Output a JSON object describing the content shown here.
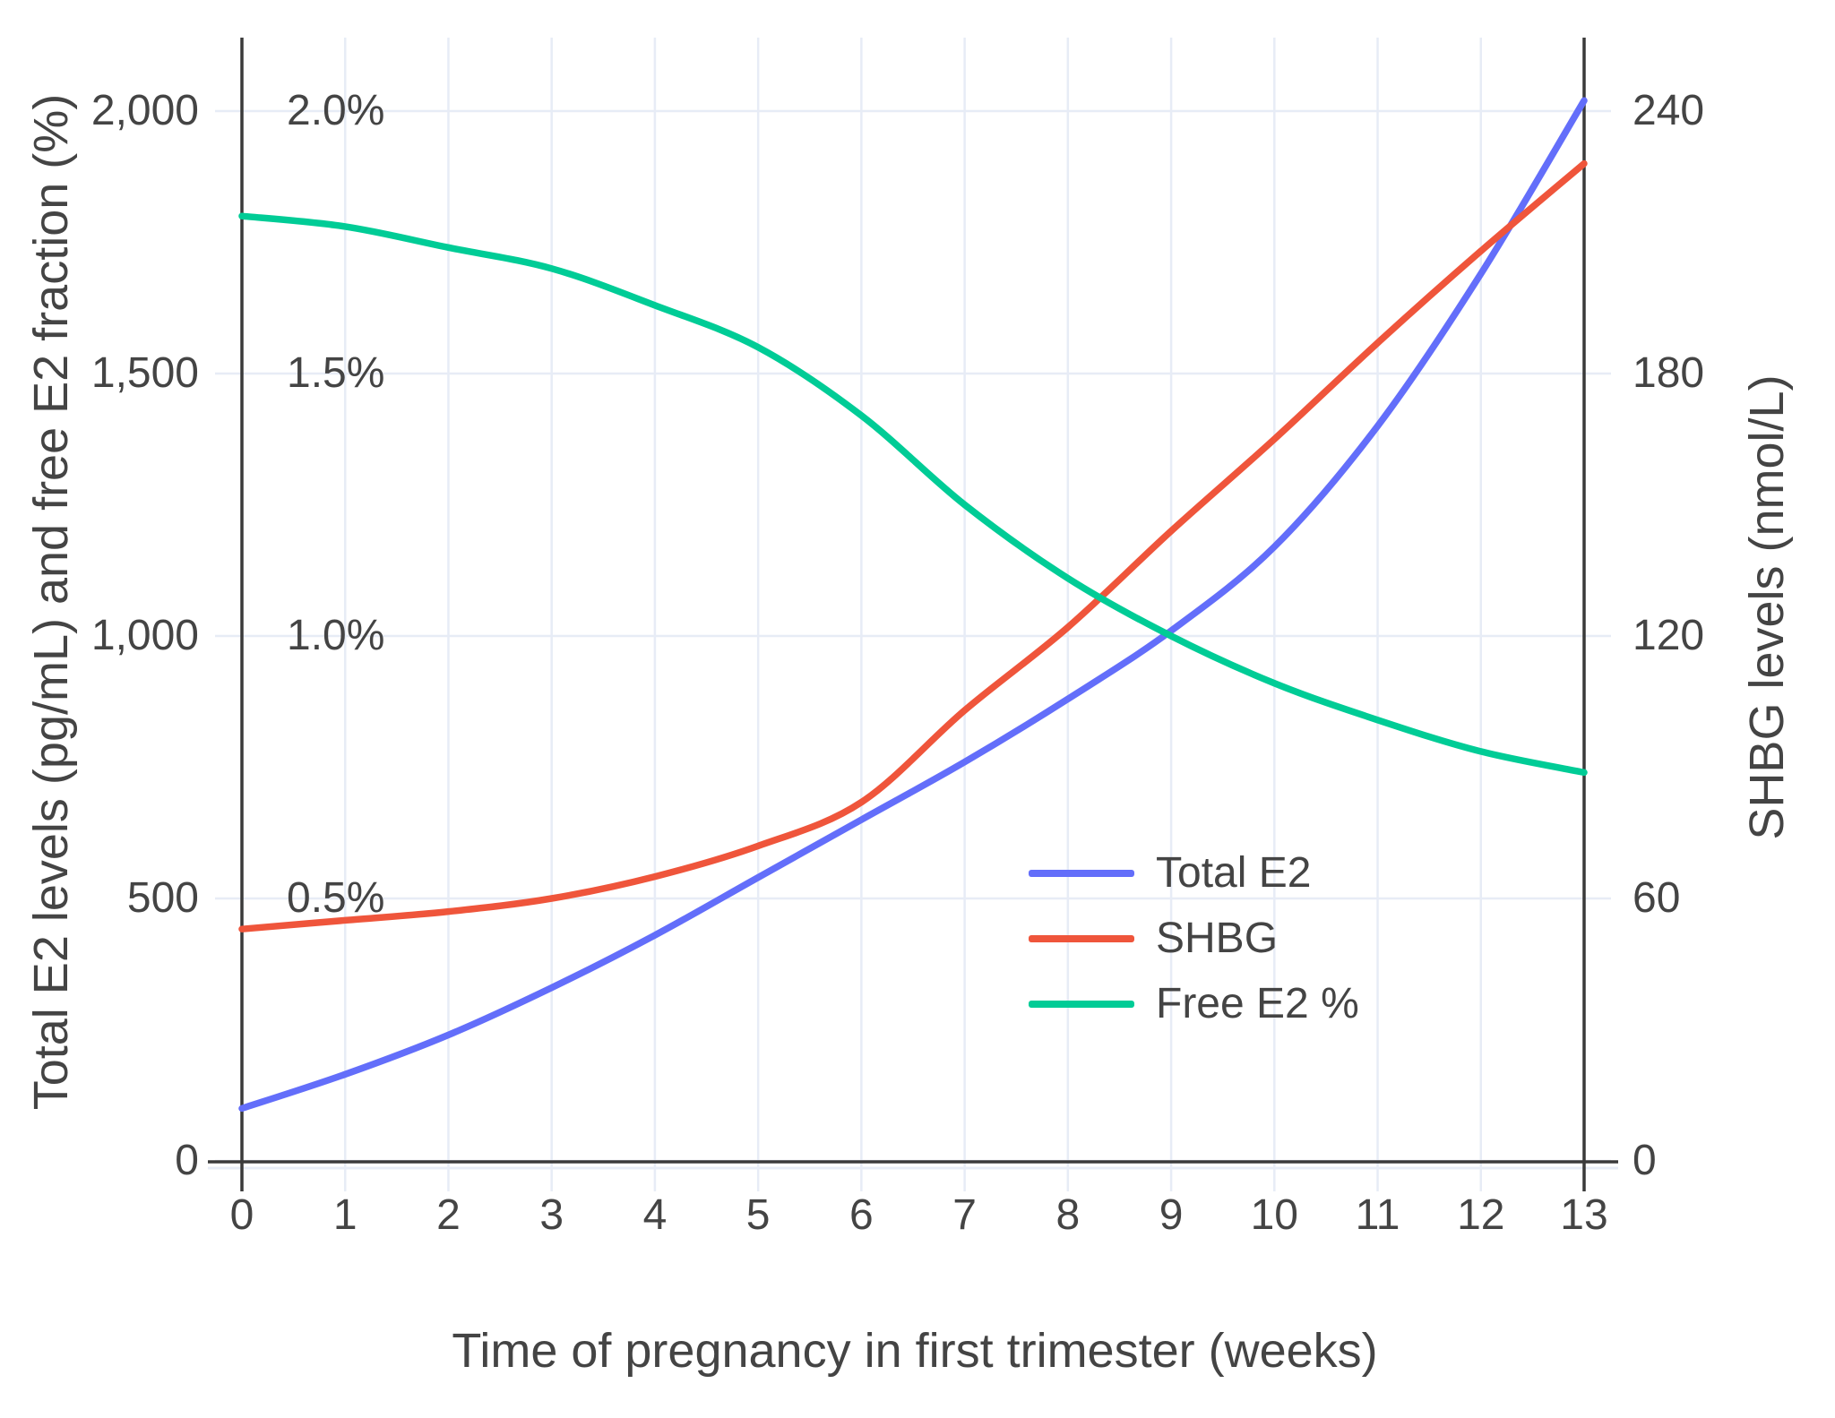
{
  "figure": {
    "x_axis": {
      "title": "Time of pregnancy in first trimester (weeks)",
      "ticks": [
        "0",
        "1",
        "2",
        "3",
        "4",
        "5",
        "6",
        "7",
        "8",
        "9",
        "10",
        "11",
        "12",
        "13"
      ]
    },
    "y_left": {
      "title": "Total E2 levels (pg/mL) and free E2 fraction (%)",
      "ticks": [
        "2,000",
        "1,500",
        "1,000",
        "500",
        "0"
      ],
      "tick_values": [
        2000,
        1500,
        1000,
        500,
        0
      ],
      "percent_labels": [
        "2.0%",
        "1.5%",
        "1.0%",
        "0.5%"
      ],
      "percent_label_values": [
        2.0,
        1.5,
        1.0,
        0.5
      ]
    },
    "y_right": {
      "title": "SHBG levels (nmol/L)",
      "ticks": [
        "240",
        "180",
        "120",
        "60",
        "0"
      ],
      "tick_values": [
        240,
        180,
        120,
        60,
        0
      ]
    },
    "colors": {
      "total_e2": "#636EFA",
      "shbg": "#EF553B",
      "free_e2": "#00CC96",
      "axis_line": "#3a3a3a",
      "grid_line": "#e7ecf6",
      "text": "#444444"
    }
  },
  "chart_data": {
    "type": "line",
    "x": [
      0,
      1,
      2,
      3,
      4,
      5,
      6,
      7,
      8,
      9,
      10,
      11,
      12,
      13
    ],
    "xlabel": "Time of pregnancy in first trimester (weeks)",
    "ylabel_left": "Total E2 levels (pg/mL) and free E2 fraction (%)",
    "ylabel_right": "SHBG levels (nmol/L)",
    "ylim_left": [
      0,
      2000
    ],
    "ylim_right": [
      0,
      240
    ],
    "ylim_percent": [
      0,
      2.0
    ],
    "grid": true,
    "legend_position": "center-right",
    "series": [
      {
        "name": "Total E2",
        "units": "pg/mL",
        "axis": "left",
        "color": "#636EFA",
        "values": [
          100,
          165,
          240,
          330,
          430,
          540,
          650,
          760,
          880,
          1010,
          1170,
          1400,
          1690,
          2020
        ]
      },
      {
        "name": "SHBG",
        "units": "nmol/L",
        "axis": "right",
        "color": "#EF553B",
        "values": [
          53,
          55,
          57,
          60,
          65,
          72,
          82,
          103,
          122,
          144,
          165,
          187,
          208,
          228
        ]
      },
      {
        "name": "Free E2 %",
        "units": "%",
        "axis": "left-percent",
        "color": "#00CC96",
        "values": [
          1.8,
          1.78,
          1.74,
          1.7,
          1.63,
          1.55,
          1.42,
          1.25,
          1.11,
          1.0,
          0.91,
          0.84,
          0.78,
          0.74
        ]
      }
    ]
  }
}
